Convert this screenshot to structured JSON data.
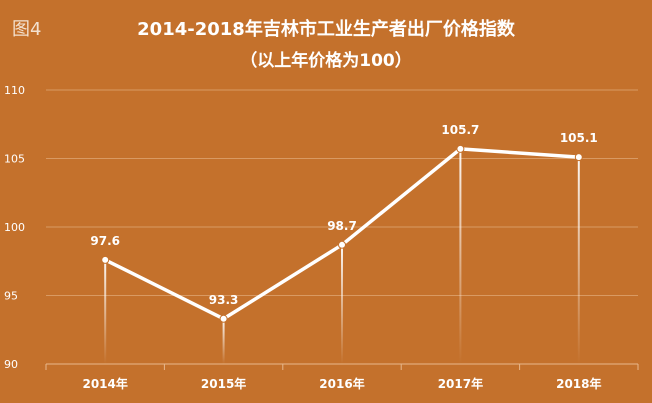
{
  "figure_label": "图4",
  "chart_data": {
    "type": "line",
    "title": "2014-2018年吉林市工业生产者出厂价格指数",
    "subtitle": "（以上年价格为100）",
    "categories": [
      "2014年",
      "2015年",
      "2016年",
      "2017年",
      "2018年"
    ],
    "series": [
      {
        "values": [
          97.6,
          93.3,
          98.7,
          105.7,
          105.1
        ]
      }
    ],
    "data_labels": [
      "97.6",
      "93.3",
      "98.7",
      "105.7",
      "105.1"
    ],
    "y_ticks": [
      90,
      95,
      100,
      105,
      110
    ],
    "ylim": [
      90,
      110
    ],
    "grid": true,
    "legend": "none"
  },
  "colors": {
    "background": "#c4712c",
    "line": "#ffffff",
    "grid": "#d99a63",
    "text": "#ffffff"
  }
}
